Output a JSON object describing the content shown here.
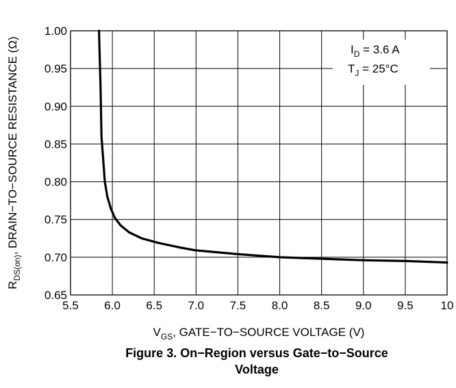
{
  "chart_data": {
    "type": "line",
    "xlabel": "V_GS, GATE−TO−SOURCE VOLTAGE (V)",
    "xlabel_parts": {
      "main": "V",
      "sub": "GS",
      "rest": ", GATE−TO−SOURCE VOLTAGE (V)"
    },
    "ylabel": "R_DS(on), DRAIN−TO−SOURCE RESISTANCE (Ω)",
    "ylabel_parts": {
      "main": "R",
      "sub": "DS(on)",
      "rest": ", DRAIN−TO−SOURCE RESISTANCE (Ω)"
    },
    "xlim": [
      5.5,
      10
    ],
    "ylim": [
      0.65,
      1.0
    ],
    "x_ticks": [
      5.5,
      6.0,
      6.5,
      7.0,
      7.5,
      8.0,
      8.5,
      9.0,
      9.5,
      10
    ],
    "x_tick_labels": [
      "5.5",
      "6.0",
      "6.5",
      "7.0",
      "7.5",
      "8.0",
      "8.5",
      "9.0",
      "9.5",
      "10"
    ],
    "y_ticks": [
      0.65,
      0.7,
      0.75,
      0.8,
      0.85,
      0.9,
      0.95,
      1.0
    ],
    "y_tick_labels": [
      "0.65",
      "0.70",
      "0.75",
      "0.80",
      "0.85",
      "0.90",
      "0.95",
      "1.00"
    ],
    "grid": true,
    "annotations": [
      {
        "main": "I",
        "sub": "D",
        "rest": " = 3.6 A"
      },
      {
        "main": "T",
        "sub": "J",
        "rest": " = 25°C"
      }
    ],
    "series": [
      {
        "x": [
          5.84,
          5.85,
          5.86,
          5.87,
          5.89,
          5.91,
          5.94,
          5.98,
          6.03,
          6.1,
          6.2,
          6.35,
          6.55,
          6.8,
          7.0,
          7.5,
          8.0,
          8.5,
          9.0,
          9.5,
          10.0
        ],
        "y": [
          1.0,
          0.96,
          0.92,
          0.86,
          0.83,
          0.8,
          0.78,
          0.765,
          0.752,
          0.742,
          0.733,
          0.725,
          0.719,
          0.713,
          0.709,
          0.704,
          0.7,
          0.698,
          0.696,
          0.695,
          0.693
        ]
      }
    ]
  },
  "caption": {
    "line1": "Figure 3. On−Region versus Gate−to−Source",
    "line2": "Voltage"
  },
  "colors": {
    "line": "#000000",
    "grid": "#000000",
    "background": "#ffffff"
  }
}
